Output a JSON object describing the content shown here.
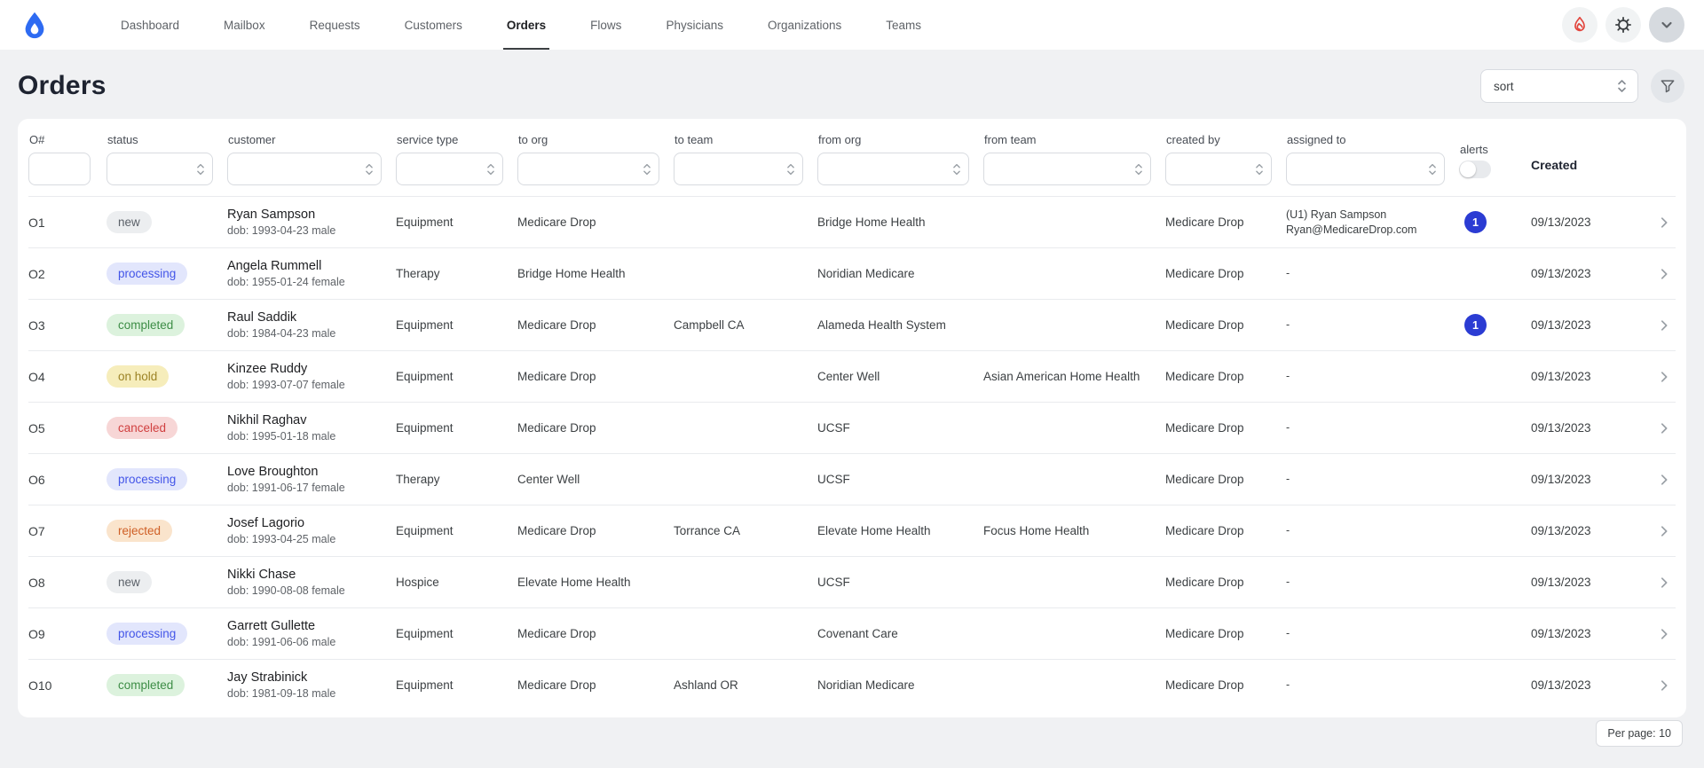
{
  "brand": {
    "logo_icon": "drop-icon",
    "accent": "#2e6bf2"
  },
  "nav": {
    "items": [
      {
        "label": "Dashboard",
        "active": false
      },
      {
        "label": "Mailbox",
        "active": false
      },
      {
        "label": "Requests",
        "active": false
      },
      {
        "label": "Customers",
        "active": false
      },
      {
        "label": "Orders",
        "active": true
      },
      {
        "label": "Flows",
        "active": false
      },
      {
        "label": "Physicians",
        "active": false
      },
      {
        "label": "Organizations",
        "active": false
      },
      {
        "label": "Teams",
        "active": false
      }
    ],
    "action_icons": [
      "flame-icon",
      "gear-icon",
      "chevron-down-icon"
    ]
  },
  "page": {
    "title": "Orders",
    "sort_placeholder": "sort",
    "filter_icon": "funnel-icon"
  },
  "table": {
    "filter_columns": [
      {
        "label": "O#",
        "type": "text"
      },
      {
        "label": "status",
        "type": "select"
      },
      {
        "label": "customer",
        "type": "select"
      },
      {
        "label": "service type",
        "type": "select"
      },
      {
        "label": "to org",
        "type": "select"
      },
      {
        "label": "to team",
        "type": "select"
      },
      {
        "label": "from org",
        "type": "select"
      },
      {
        "label": "from team",
        "type": "select"
      },
      {
        "label": "created by",
        "type": "select"
      },
      {
        "label": "assigned to",
        "type": "select"
      }
    ],
    "alerts_label": "alerts",
    "created_label": "Created",
    "alert_badge_color": "#2b3cd3",
    "status_colors": {
      "new": {
        "bg": "#eceef0",
        "text": "#5b6169"
      },
      "processing": {
        "bg": "#e2e6fc",
        "text": "#4355e8"
      },
      "completed": {
        "bg": "#dcf2dd",
        "text": "#3d8d46"
      },
      "on hold": {
        "bg": "#f6edbb",
        "text": "#9c8326"
      },
      "canceled": {
        "bg": "#f7d6d6",
        "text": "#d03f3f"
      },
      "rejected": {
        "bg": "#fae4cc",
        "text": "#cf5f26"
      }
    },
    "rows": [
      {
        "id": "O1",
        "status": "new",
        "customer_name": "Ryan Sampson",
        "customer_dob": "dob: 1993-04-23 male",
        "service_type": "Equipment",
        "to_org": "Medicare Drop",
        "to_team": "",
        "from_org": "Bridge Home Health",
        "from_team": "",
        "created_by": "Medicare Drop",
        "assigned_to_1": "(U1) Ryan Sampson",
        "assigned_to_2": "Ryan@MedicareDrop.com",
        "alerts": "1",
        "created": "09/13/2023"
      },
      {
        "id": "O2",
        "status": "processing",
        "customer_name": "Angela Rummell",
        "customer_dob": "dob: 1955-01-24 female",
        "service_type": "Therapy",
        "to_org": "Bridge Home Health",
        "to_team": "",
        "from_org": "Noridian Medicare",
        "from_team": "",
        "created_by": "Medicare Drop",
        "assigned_to_1": "-",
        "assigned_to_2": "",
        "alerts": "",
        "created": "09/13/2023"
      },
      {
        "id": "O3",
        "status": "completed",
        "customer_name": "Raul Saddik",
        "customer_dob": "dob: 1984-04-23 male",
        "service_type": "Equipment",
        "to_org": "Medicare Drop",
        "to_team": "Campbell CA",
        "from_org": "Alameda Health System",
        "from_team": "",
        "created_by": "Medicare Drop",
        "assigned_to_1": "-",
        "assigned_to_2": "",
        "alerts": "1",
        "created": "09/13/2023"
      },
      {
        "id": "O4",
        "status": "on hold",
        "customer_name": "Kinzee Ruddy",
        "customer_dob": "dob: 1993-07-07 female",
        "service_type": "Equipment",
        "to_org": "Medicare Drop",
        "to_team": "",
        "from_org": "Center Well",
        "from_team": "Asian American Home Health",
        "created_by": "Medicare Drop",
        "assigned_to_1": "-",
        "assigned_to_2": "",
        "alerts": "",
        "created": "09/13/2023"
      },
      {
        "id": "O5",
        "status": "canceled",
        "customer_name": "Nikhil Raghav",
        "customer_dob": "dob: 1995-01-18 male",
        "service_type": "Equipment",
        "to_org": "Medicare Drop",
        "to_team": "",
        "from_org": "UCSF",
        "from_team": "",
        "created_by": "Medicare Drop",
        "assigned_to_1": "-",
        "assigned_to_2": "",
        "alerts": "",
        "created": "09/13/2023"
      },
      {
        "id": "O6",
        "status": "processing",
        "customer_name": "Love Broughton",
        "customer_dob": "dob: 1991-06-17 female",
        "service_type": "Therapy",
        "to_org": "Center Well",
        "to_team": "",
        "from_org": "UCSF",
        "from_team": "",
        "created_by": "Medicare Drop",
        "assigned_to_1": "-",
        "assigned_to_2": "",
        "alerts": "",
        "created": "09/13/2023"
      },
      {
        "id": "O7",
        "status": "rejected",
        "customer_name": "Josef Lagorio",
        "customer_dob": "dob: 1993-04-25 male",
        "service_type": "Equipment",
        "to_org": "Medicare Drop",
        "to_team": "Torrance CA",
        "from_org": "Elevate Home Health",
        "from_team": "Focus Home Health",
        "created_by": "Medicare Drop",
        "assigned_to_1": "-",
        "assigned_to_2": "",
        "alerts": "",
        "created": "09/13/2023"
      },
      {
        "id": "O8",
        "status": "new",
        "customer_name": "Nikki Chase",
        "customer_dob": "dob: 1990-08-08 female",
        "service_type": "Hospice",
        "to_org": "Elevate Home Health",
        "to_team": "",
        "from_org": "UCSF",
        "from_team": "",
        "created_by": "Medicare Drop",
        "assigned_to_1": "-",
        "assigned_to_2": "",
        "alerts": "",
        "created": "09/13/2023"
      },
      {
        "id": "O9",
        "status": "processing",
        "customer_name": "Garrett Gullette",
        "customer_dob": "dob: 1991-06-06 male",
        "service_type": "Equipment",
        "to_org": "Medicare Drop",
        "to_team": "",
        "from_org": "Covenant Care",
        "from_team": "",
        "created_by": "Medicare Drop",
        "assigned_to_1": "-",
        "assigned_to_2": "",
        "alerts": "",
        "created": "09/13/2023"
      },
      {
        "id": "O10",
        "status": "completed",
        "customer_name": "Jay Strabinick",
        "customer_dob": "dob: 1981-09-18 male",
        "service_type": "Equipment",
        "to_org": "Medicare Drop",
        "to_team": "Ashland OR",
        "from_org": "Noridian Medicare",
        "from_team": "",
        "created_by": "Medicare Drop",
        "assigned_to_1": "-",
        "assigned_to_2": "",
        "alerts": "",
        "created": "09/13/2023"
      }
    ]
  },
  "footer": {
    "per_page_label": "Per page: 10"
  }
}
